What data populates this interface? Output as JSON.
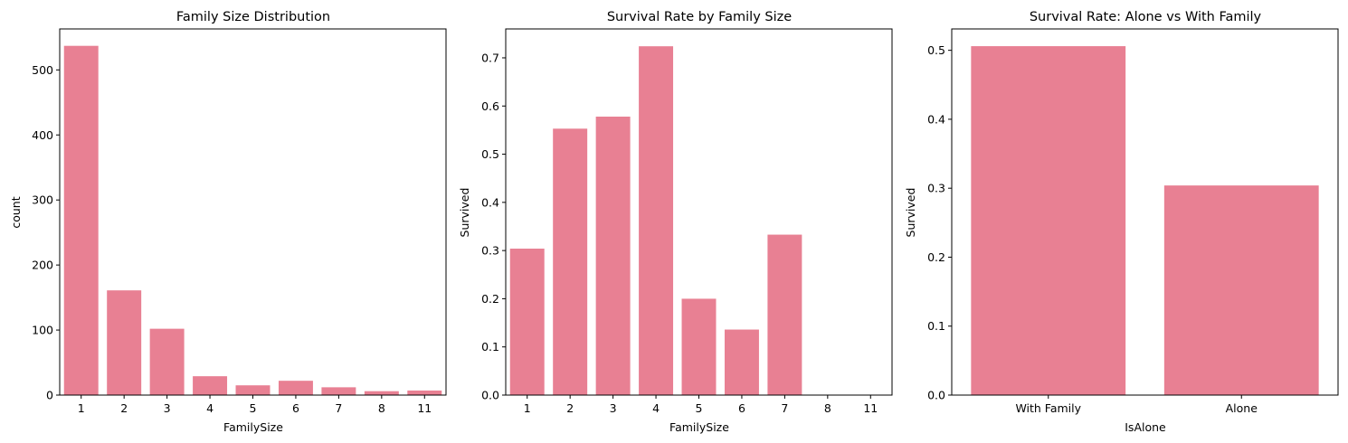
{
  "chart_data": [
    {
      "type": "bar",
      "title": "Family Size Distribution",
      "xlabel": "FamilySize",
      "ylabel": "count",
      "categories": [
        "1",
        "2",
        "3",
        "4",
        "5",
        "6",
        "7",
        "8",
        "11"
      ],
      "values": [
        537,
        161,
        102,
        29,
        15,
        22,
        12,
        6,
        7
      ],
      "ylim": [
        0,
        563
      ],
      "yticks": [
        0,
        100,
        200,
        300,
        400,
        500
      ],
      "ytick_labels": [
        "0",
        "100",
        "200",
        "300",
        "400",
        "500"
      ],
      "bar_color": "#e88093",
      "grid": false
    },
    {
      "type": "bar",
      "title": "Survival Rate by Family Size",
      "xlabel": "FamilySize",
      "ylabel": "Survived",
      "categories": [
        "1",
        "2",
        "3",
        "4",
        "5",
        "6",
        "7",
        "8",
        "11"
      ],
      "values": [
        0.304,
        0.553,
        0.578,
        0.724,
        0.2,
        0.136,
        0.333,
        0.0,
        0.0
      ],
      "ylim": [
        0,
        0.76
      ],
      "yticks": [
        0,
        0.1,
        0.2,
        0.3,
        0.4,
        0.5,
        0.6,
        0.7
      ],
      "ytick_labels": [
        "0.0",
        "0.1",
        "0.2",
        "0.3",
        "0.4",
        "0.5",
        "0.6",
        "0.7"
      ],
      "bar_color": "#e88093",
      "grid": false
    },
    {
      "type": "bar",
      "title": "Survival Rate: Alone vs With Family",
      "xlabel": "IsAlone",
      "ylabel": "Survived",
      "categories": [
        "With Family",
        "Alone"
      ],
      "values": [
        0.506,
        0.304
      ],
      "ylim": [
        0,
        0.531
      ],
      "yticks": [
        0,
        0.1,
        0.2,
        0.3,
        0.4,
        0.5
      ],
      "ytick_labels": [
        "0.0",
        "0.1",
        "0.2",
        "0.3",
        "0.4",
        "0.5"
      ],
      "bar_color": "#e88093",
      "grid": false
    }
  ]
}
